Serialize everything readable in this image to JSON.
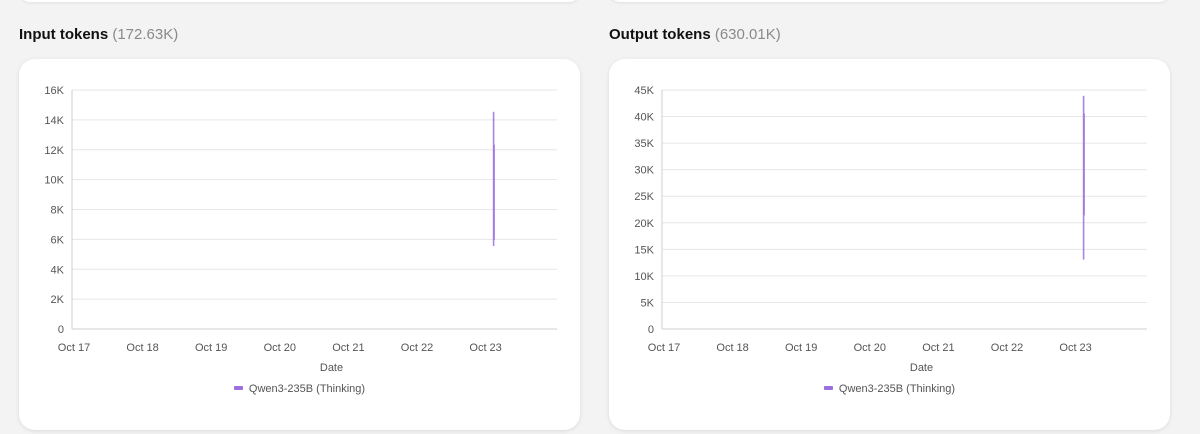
{
  "panels": [
    {
      "title": "Input tokens",
      "total": "(172.63K)",
      "chart_data": {
        "type": "line",
        "categories": [
          "Oct 17",
          "Oct 18",
          "Oct 19",
          "Oct 20",
          "Oct 21",
          "Oct 22",
          "Oct 23"
        ],
        "yticks": [
          "0",
          "2K",
          "4K",
          "6K",
          "8K",
          "10K",
          "12K",
          "14K",
          "16K"
        ],
        "ylim": [
          0,
          16000
        ],
        "xlabel": "Date",
        "ylabel": "",
        "grid": true,
        "legend_position": "bottom-center",
        "series": [
          {
            "name": "Qwen3-235B (Thinking)",
            "color": "#9b6fe0",
            "segments": [
              {
                "x": "Oct 23",
                "low": 5600,
                "high": 14500
              },
              {
                "x": "Oct 23",
                "low": 6000,
                "high": 12300
              }
            ]
          }
        ]
      }
    },
    {
      "title": "Output tokens",
      "total": "(630.01K)",
      "chart_data": {
        "type": "line",
        "categories": [
          "Oct 17",
          "Oct 18",
          "Oct 19",
          "Oct 20",
          "Oct 21",
          "Oct 22",
          "Oct 23"
        ],
        "yticks": [
          "0",
          "5K",
          "10K",
          "15K",
          "20K",
          "25K",
          "30K",
          "35K",
          "40K",
          "45K"
        ],
        "ylim": [
          0,
          45000
        ],
        "xlabel": "Date",
        "ylabel": "",
        "grid": true,
        "legend_position": "bottom-center",
        "series": [
          {
            "name": "Qwen3-235B (Thinking)",
            "color": "#9b6fe0",
            "segments": [
              {
                "x": "Oct 23",
                "low": 13200,
                "high": 43800
              },
              {
                "x": "Oct 23",
                "low": 21500,
                "high": 40500
              }
            ]
          }
        ]
      }
    }
  ]
}
